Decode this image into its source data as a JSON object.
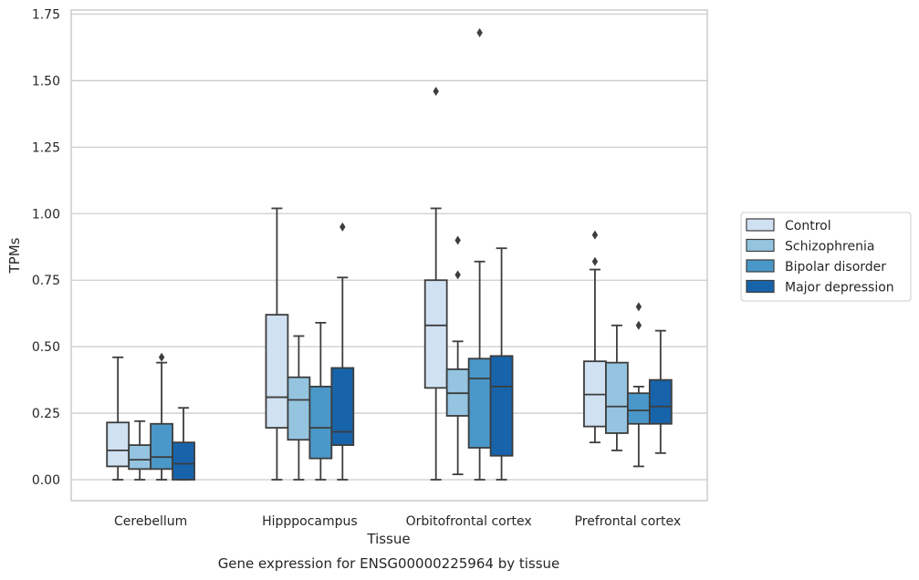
{
  "chart_data": {
    "type": "boxplot",
    "title": "",
    "xlabel": "Tissue",
    "ylabel": "TPMs",
    "caption": "Gene expression for ENSG00000225964 by tissue",
    "ylim": [
      -0.08,
      1.76
    ],
    "yticks": [
      0.0,
      0.25,
      0.5,
      0.75,
      1.0,
      1.25,
      1.5,
      1.75
    ],
    "ytick_labels": [
      "0.00",
      "0.25",
      "0.50",
      "0.75",
      "1.00",
      "1.25",
      "1.50",
      "1.75"
    ],
    "grid": "horizontal",
    "legend_position": "right",
    "categories": [
      "Cerebellum",
      "Hipppocampus",
      "Orbitofrontal cortex",
      "Prefrontal cortex"
    ],
    "series": [
      {
        "name": "Control",
        "color": "#d0e1f2",
        "boxes": [
          {
            "whislo": 0.0,
            "q1": 0.05,
            "med": 0.11,
            "q3": 0.215,
            "whishi": 0.46,
            "fliers": []
          },
          {
            "whislo": 0.0,
            "q1": 0.195,
            "med": 0.31,
            "q3": 0.62,
            "whishi": 1.02,
            "fliers": []
          },
          {
            "whislo": 0.0,
            "q1": 0.345,
            "med": 0.58,
            "q3": 0.75,
            "whishi": 1.02,
            "fliers": [
              1.46
            ]
          },
          {
            "whislo": 0.14,
            "q1": 0.2,
            "med": 0.32,
            "q3": 0.445,
            "whishi": 0.79,
            "fliers": [
              0.82,
              0.92
            ]
          }
        ]
      },
      {
        "name": "Schizophrenia",
        "color": "#94c4df",
        "boxes": [
          {
            "whislo": 0.0,
            "q1": 0.04,
            "med": 0.075,
            "q3": 0.13,
            "whishi": 0.22,
            "fliers": []
          },
          {
            "whislo": 0.0,
            "q1": 0.15,
            "med": 0.3,
            "q3": 0.385,
            "whishi": 0.54,
            "fliers": []
          },
          {
            "whislo": 0.02,
            "q1": 0.24,
            "med": 0.325,
            "q3": 0.415,
            "whishi": 0.52,
            "fliers": [
              0.77,
              0.9
            ]
          },
          {
            "whislo": 0.11,
            "q1": 0.175,
            "med": 0.275,
            "q3": 0.44,
            "whishi": 0.58,
            "fliers": []
          }
        ]
      },
      {
        "name": "Bipolar disorder",
        "color": "#4a98c9",
        "boxes": [
          {
            "whislo": 0.0,
            "q1": 0.04,
            "med": 0.085,
            "q3": 0.21,
            "whishi": 0.44,
            "fliers": [
              0.46
            ]
          },
          {
            "whislo": 0.0,
            "q1": 0.08,
            "med": 0.195,
            "q3": 0.35,
            "whishi": 0.59,
            "fliers": []
          },
          {
            "whislo": 0.0,
            "q1": 0.12,
            "med": 0.38,
            "q3": 0.455,
            "whishi": 0.82,
            "fliers": [
              1.68
            ]
          },
          {
            "whislo": 0.05,
            "q1": 0.21,
            "med": 0.26,
            "q3": 0.325,
            "whishi": 0.35,
            "fliers": [
              0.58,
              0.65
            ]
          }
        ]
      },
      {
        "name": "Major depression",
        "color": "#1764ab",
        "boxes": [
          {
            "whislo": 0.0,
            "q1": 0.0,
            "med": 0.06,
            "q3": 0.14,
            "whishi": 0.27,
            "fliers": []
          },
          {
            "whislo": 0.0,
            "q1": 0.13,
            "med": 0.18,
            "q3": 0.42,
            "whishi": 0.76,
            "fliers": [
              0.95
            ]
          },
          {
            "whislo": 0.0,
            "q1": 0.09,
            "med": 0.35,
            "q3": 0.465,
            "whishi": 0.87,
            "fliers": []
          },
          {
            "whislo": 0.1,
            "q1": 0.21,
            "med": 0.275,
            "q3": 0.375,
            "whishi": 0.56,
            "fliers": []
          }
        ]
      }
    ],
    "colors": {
      "edge": "#3d3d3d",
      "grid": "#cccccc",
      "frame": "#cccccc",
      "text": "#262626"
    }
  }
}
